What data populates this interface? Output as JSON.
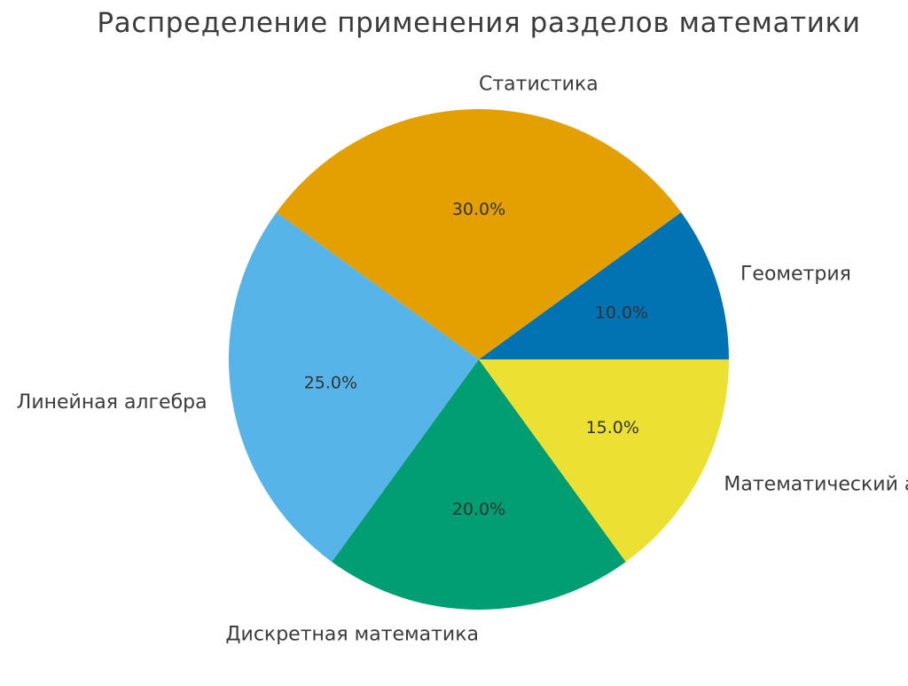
{
  "chart_data": {
    "type": "pie",
    "title": "Распределение применения разделов математики",
    "slices": [
      {
        "label": "Геометрия",
        "value": 10,
        "pct_label": "10.0%",
        "color": "#0173B2"
      },
      {
        "label": "Статистика",
        "value": 30,
        "pct_label": "30.0%",
        "color": "#E49F00"
      },
      {
        "label": "Линейная алгебра",
        "value": 25,
        "pct_label": "25.0%",
        "color": "#56B4E9"
      },
      {
        "label": "Дискретная математика",
        "value": 20,
        "pct_label": "20.0%",
        "color": "#029E73"
      },
      {
        "label": "Математический анализ",
        "value": 15,
        "pct_label": "15.0%",
        "color": "#ECE133"
      }
    ],
    "start_angle_deg": 0,
    "direction": "counterclockwise",
    "legend": "none"
  }
}
